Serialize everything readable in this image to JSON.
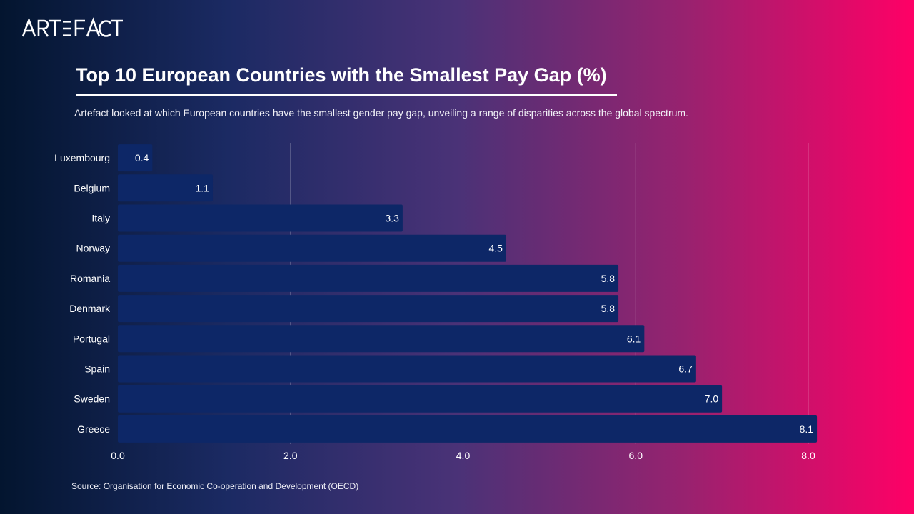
{
  "brand": {
    "logo_text": "ARTEFACT"
  },
  "header": {
    "title": "Top 10 European Countries with the Smallest Pay Gap (%)",
    "subtitle": "Artefact looked at which European countries have the smallest gender pay gap, unveiling a range of disparities across the global spectrum."
  },
  "footer": {
    "source": "Source: Organisation for Economic Co-operation and Development (OECD)"
  },
  "colors": {
    "bar": "#0d2767",
    "grid": "#ffffff",
    "text": "#ffffff"
  },
  "chart_data": {
    "type": "bar",
    "orientation": "horizontal",
    "categories": [
      "Luxembourg",
      "Belgium",
      "Italy",
      "Norway",
      "Romania",
      "Denmark",
      "Portugal",
      "Spain",
      "Sweden",
      "Greece"
    ],
    "values": [
      0.4,
      1.1,
      3.3,
      4.5,
      5.8,
      5.8,
      6.1,
      6.7,
      7.0,
      8.1
    ],
    "value_labels": [
      "0.4",
      "1.1",
      "3.3",
      "4.5",
      "5.8",
      "5.8",
      "6.1",
      "6.7",
      "7.0",
      "8.1"
    ],
    "xlim": [
      0,
      8
    ],
    "xticks": [
      0,
      2,
      4,
      6,
      8
    ],
    "xtick_labels": [
      "0.0",
      "2.0",
      "4.0",
      "6.0",
      "8.0"
    ],
    "grid": true,
    "legend": "none"
  }
}
